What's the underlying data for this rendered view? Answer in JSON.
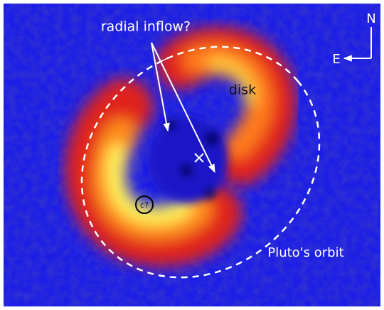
{
  "annotations": {
    "inflow_label": "radial inflow?",
    "disk_label": "disk",
    "north": "N",
    "east": "E",
    "companion": "c?",
    "orbit_label": "Pluto's orbit"
  }
}
